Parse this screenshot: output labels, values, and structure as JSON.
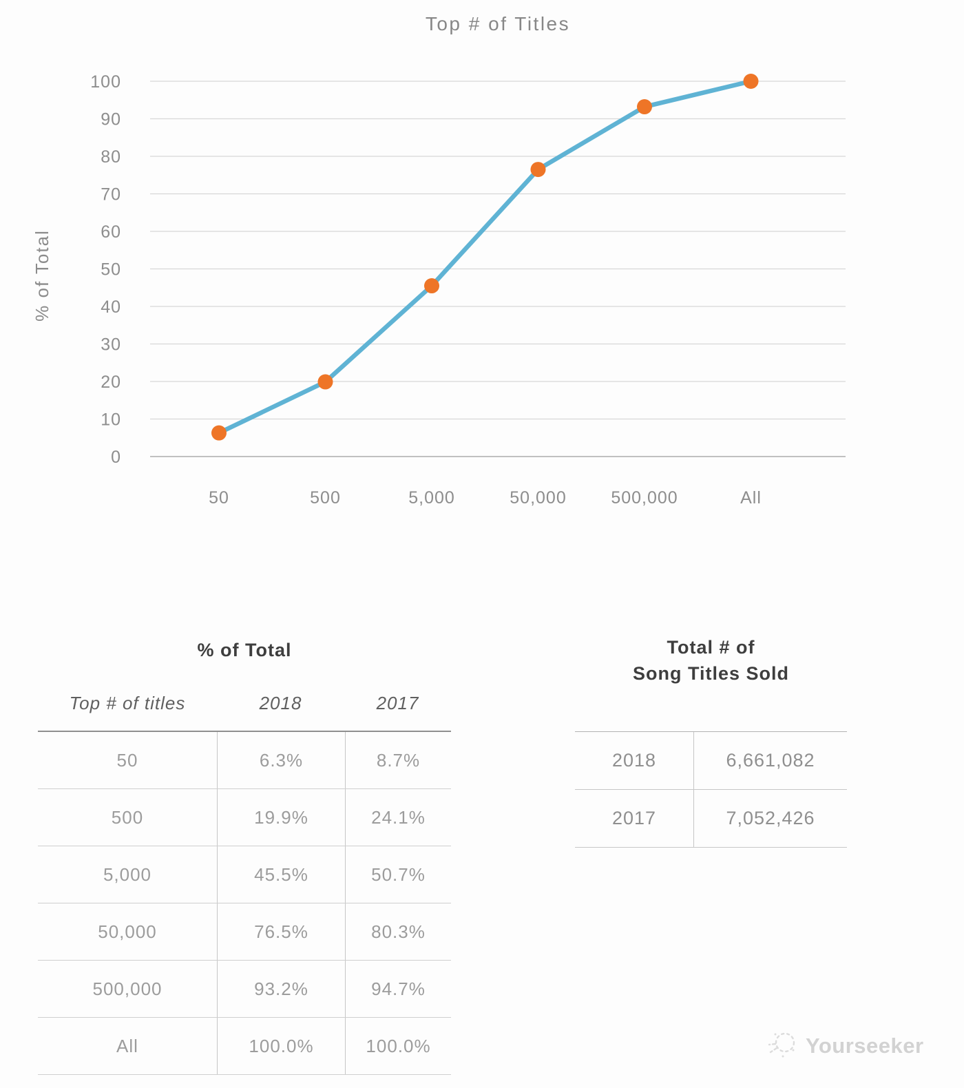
{
  "chart_data": {
    "type": "line",
    "title": "Top # of Titles",
    "xlabel": "",
    "ylabel": "% of Total",
    "categories": [
      "50",
      "500",
      "5,000",
      "50,000",
      "500,000",
      "All"
    ],
    "series": [
      {
        "name": "2018",
        "values": [
          6.3,
          19.9,
          45.5,
          76.5,
          93.2,
          100.0
        ]
      }
    ],
    "ylim": [
      0,
      100
    ],
    "ytick_step": 10,
    "grid": true,
    "legend": false,
    "line_color": "#5FB3D4",
    "marker_color": "#EE7527",
    "grid_color": "#D7D7D7",
    "axis_color": "#C0C0C0",
    "label_color": "#8D8D8D"
  },
  "left_table": {
    "title": "% of Total",
    "columns": [
      "Top # of titles",
      "2018",
      "2017"
    ],
    "rows": [
      [
        "50",
        "6.3%",
        "8.7%"
      ],
      [
        "500",
        "19.9%",
        "24.1%"
      ],
      [
        "5,000",
        "45.5%",
        "50.7%"
      ],
      [
        "50,000",
        "76.5%",
        "80.3%"
      ],
      [
        "500,000",
        "93.2%",
        "94.7%"
      ],
      [
        "All",
        "100.0%",
        "100.0%"
      ]
    ]
  },
  "right_table": {
    "title": "Total # of\nSong Titles Sold",
    "rows": [
      [
        "2018",
        "6,661,082"
      ],
      [
        "2017",
        "7,052,426"
      ]
    ]
  },
  "watermark": {
    "text": "Yourseeker"
  }
}
